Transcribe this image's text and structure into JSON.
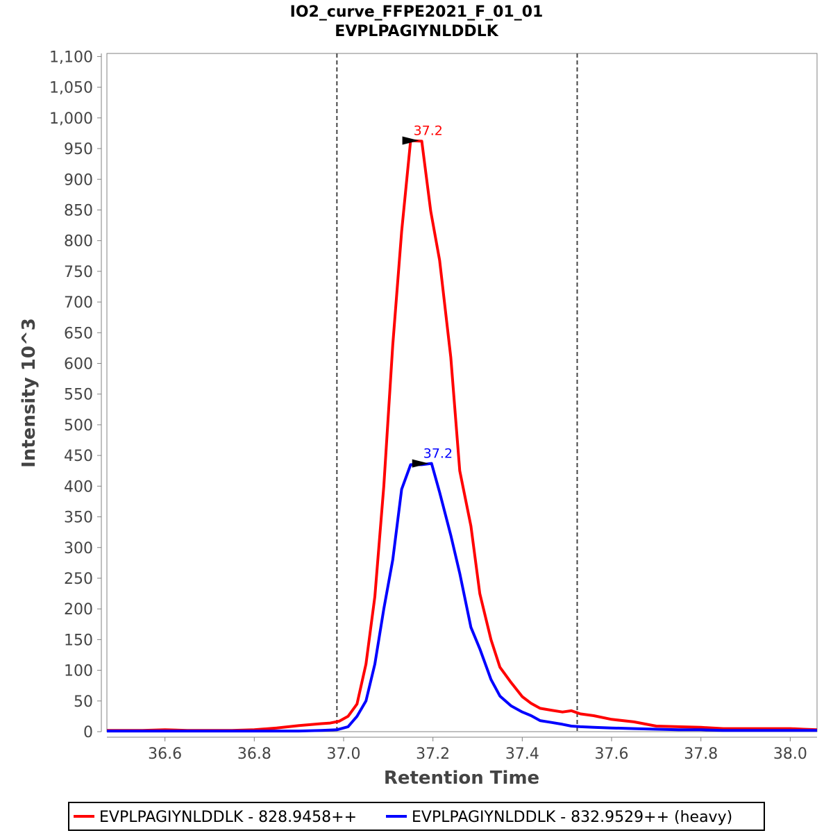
{
  "chart_data": {
    "type": "line",
    "title": "IO2_curve_FFPE2021_F_01_01",
    "subtitle": "EVPLPAGIYNLDDLK",
    "xlabel": "Retention Time",
    "ylabel": "Intensity 10^3",
    "xlim": [
      36.47,
      38.06
    ],
    "ylim": [
      0,
      1105
    ],
    "x_ticks": [
      "36.6",
      "36.8",
      "37.0",
      "37.2",
      "37.4",
      "37.6",
      "37.8",
      "38.0"
    ],
    "x_tick_values": [
      36.6,
      36.8,
      37.0,
      37.2,
      37.4,
      37.6,
      37.8,
      38.0
    ],
    "y_ticks": [
      "0",
      "50",
      "100",
      "150",
      "200",
      "250",
      "300",
      "350",
      "400",
      "450",
      "500",
      "550",
      "600",
      "650",
      "700",
      "750",
      "800",
      "850",
      "900",
      "950",
      "1,000",
      "1,050",
      "1,100"
    ],
    "y_tick_values": [
      0,
      50,
      100,
      150,
      200,
      250,
      300,
      350,
      400,
      450,
      500,
      550,
      600,
      650,
      700,
      750,
      800,
      850,
      900,
      950,
      1000,
      1050,
      1100
    ],
    "grid": false,
    "legend_position": "bottom",
    "integration_bounds": [
      36.985,
      37.523
    ],
    "series": [
      {
        "name": "EVPLPAGIYNLDDLK - 828.9458++",
        "color": "#ff0000",
        "peak_label": "37.2",
        "peak_x": 37.175,
        "peak_y": 963,
        "x": [
          36.47,
          36.5,
          36.55,
          36.6,
          36.65,
          36.7,
          36.75,
          36.8,
          36.85,
          36.9,
          36.95,
          36.97,
          36.99,
          37.01,
          37.03,
          37.05,
          37.07,
          37.09,
          37.11,
          37.13,
          37.15,
          37.175,
          37.195,
          37.215,
          37.24,
          37.26,
          37.285,
          37.305,
          37.33,
          37.35,
          37.375,
          37.4,
          37.42,
          37.44,
          37.465,
          37.49,
          37.51,
          37.53,
          37.56,
          37.6,
          37.65,
          37.7,
          37.75,
          37.8,
          37.85,
          37.9,
          37.95,
          38.0,
          38.03,
          38.06
        ],
        "y": [
          2,
          2,
          2,
          3,
          2,
          2,
          2,
          3,
          6,
          10,
          13,
          14,
          17,
          25,
          45,
          110,
          220,
          400,
          630,
          815,
          963,
          962,
          848,
          768,
          610,
          425,
          335,
          225,
          150,
          105,
          80,
          57,
          46,
          38,
          35,
          32,
          34,
          29,
          26,
          20,
          16,
          9,
          8,
          7,
          5,
          5,
          5,
          5,
          4,
          3
        ]
      },
      {
        "name": "EVPLPAGIYNLDDLK - 832.9529++ (heavy)",
        "color": "#0000ff",
        "peak_label": "37.2",
        "peak_x": 37.197,
        "peak_y": 437,
        "x": [
          36.47,
          36.6,
          36.8,
          36.9,
          36.95,
          36.985,
          37.01,
          37.03,
          37.05,
          37.07,
          37.09,
          37.11,
          37.13,
          37.15,
          37.175,
          37.197,
          37.215,
          37.24,
          37.26,
          37.285,
          37.305,
          37.33,
          37.35,
          37.375,
          37.4,
          37.42,
          37.44,
          37.465,
          37.49,
          37.51,
          37.53,
          37.56,
          37.6,
          37.65,
          37.7,
          37.75,
          37.8,
          37.85,
          37.9,
          37.95,
          38.0,
          38.06
        ],
        "y": [
          1,
          1,
          1,
          1,
          2,
          3,
          8,
          25,
          50,
          110,
          200,
          280,
          395,
          435,
          435,
          437,
          390,
          320,
          258,
          170,
          135,
          85,
          58,
          42,
          32,
          26,
          18,
          15,
          12,
          9,
          8,
          7,
          6,
          5,
          4,
          3,
          3,
          2,
          2,
          2,
          2,
          2
        ]
      }
    ]
  }
}
